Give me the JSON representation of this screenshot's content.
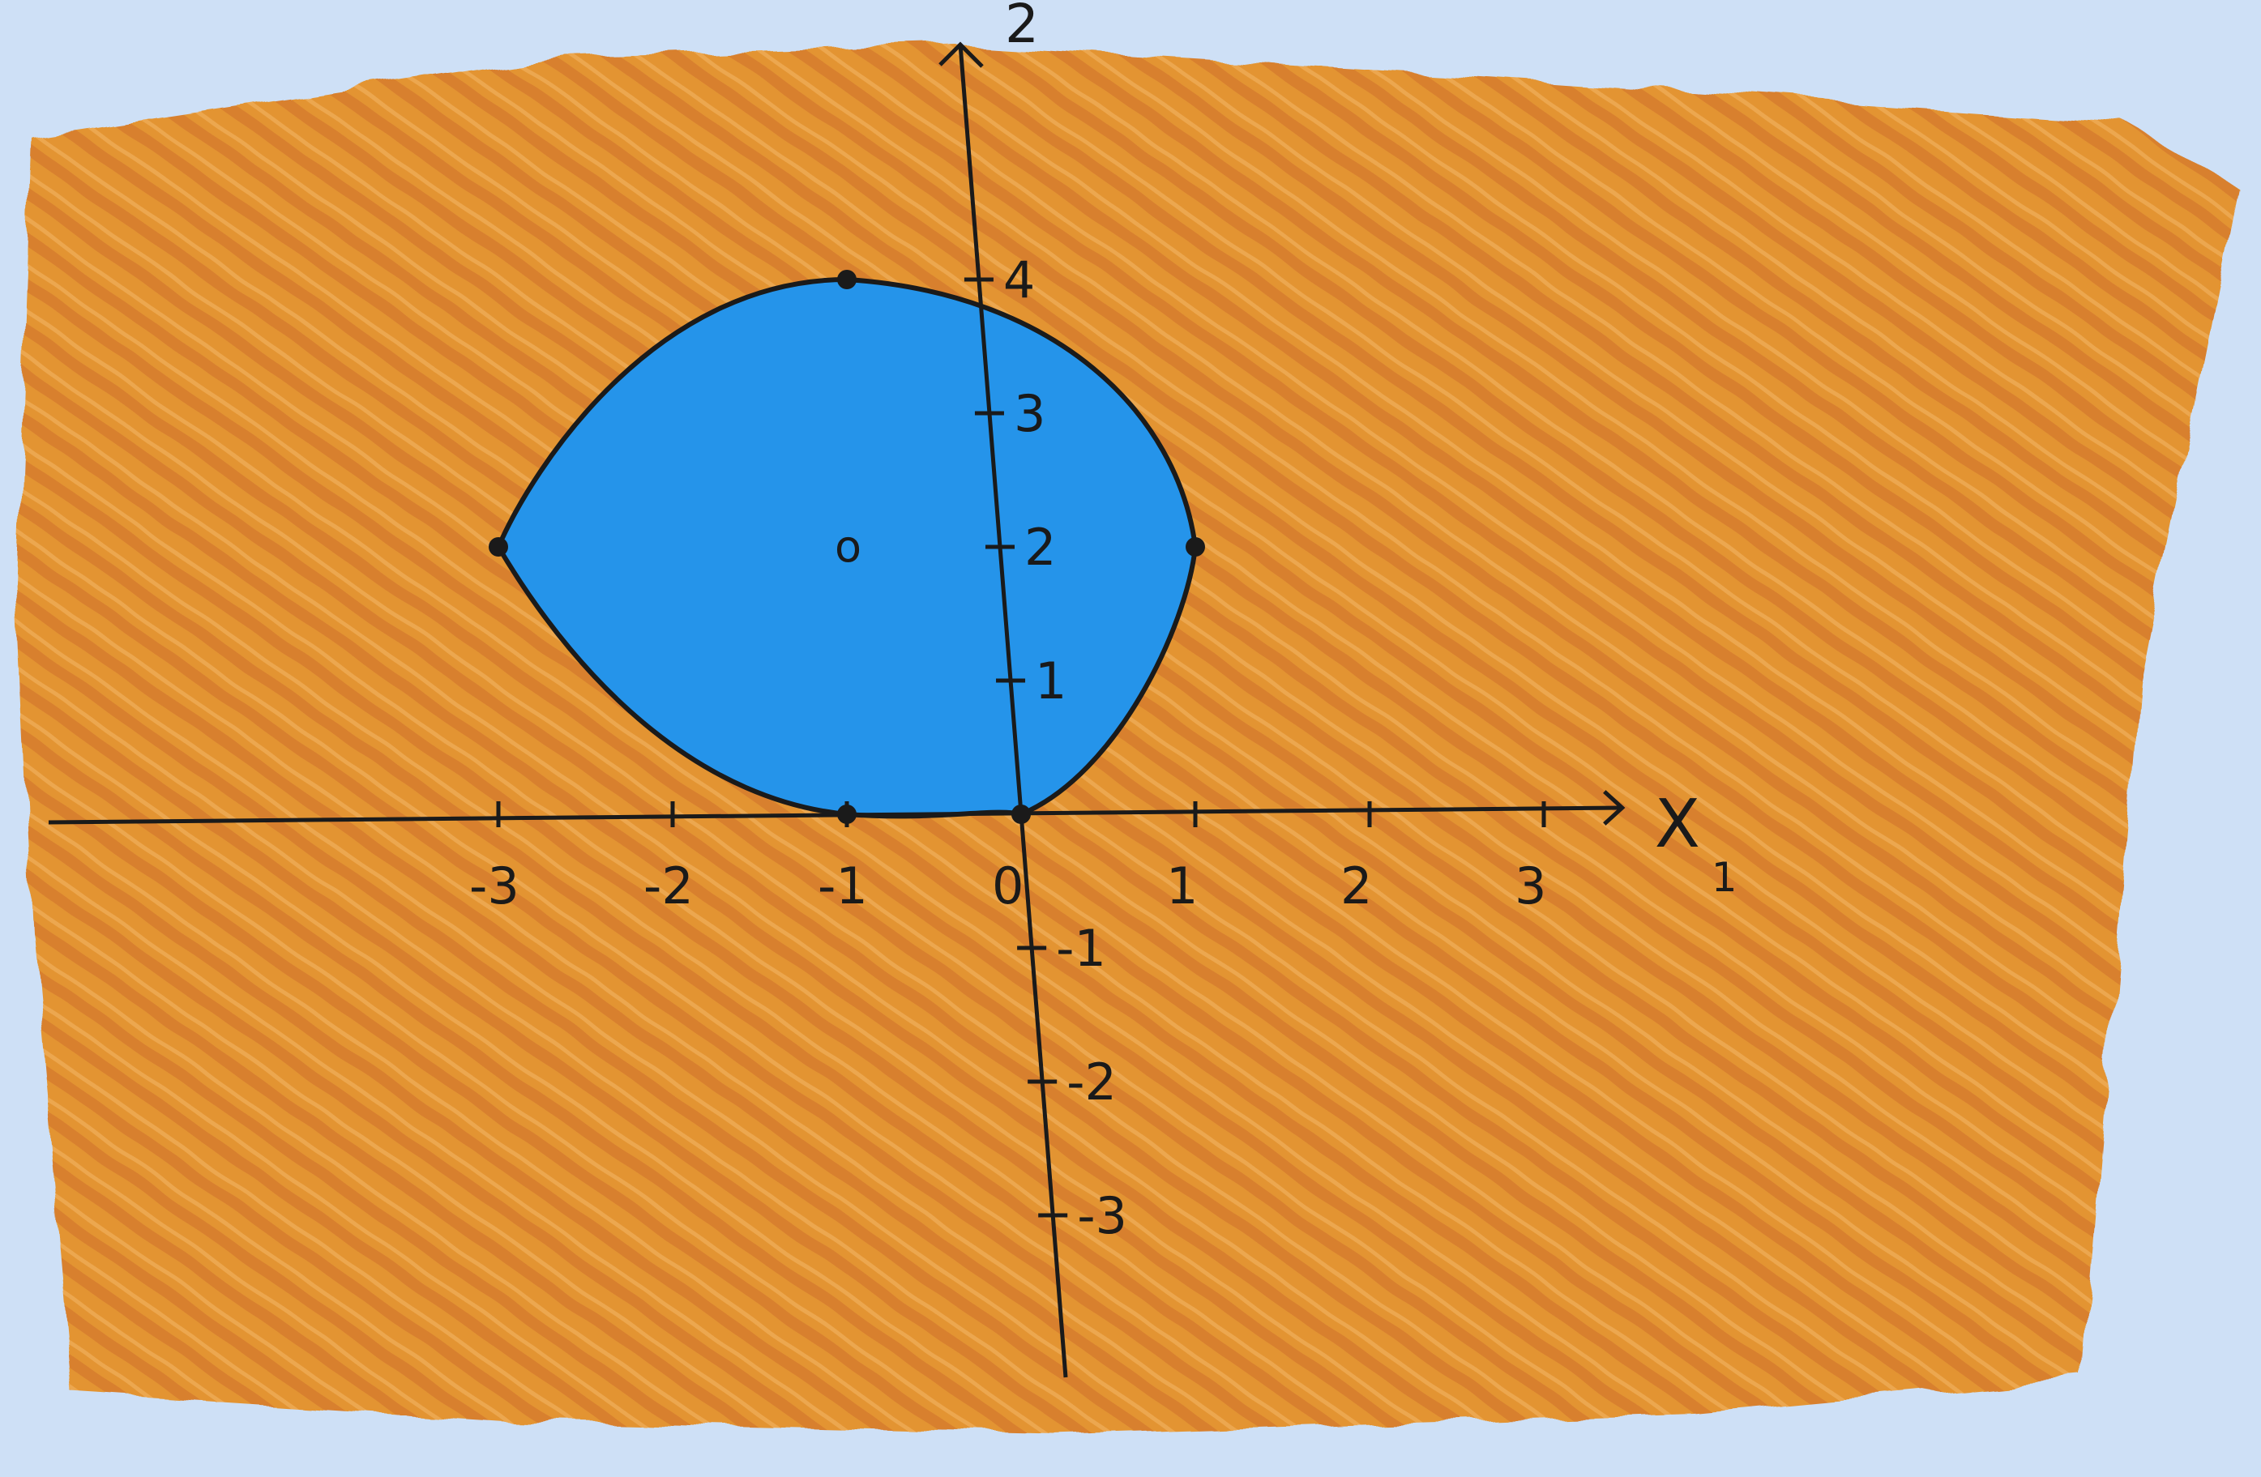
{
  "diagram": {
    "colors": {
      "background": "#b3d3f3",
      "paper": "#f2f6fc",
      "outer_region": "#e39433",
      "outer_region_dark": "#cf6f2b",
      "inner_region": "#2594ea",
      "ink": "#1a1a1a"
    },
    "axes": {
      "x_label": "X",
      "x_subscript": "1",
      "y_label": "2"
    },
    "x_ticks": [
      {
        "value": -3,
        "label": "-3"
      },
      {
        "value": -2,
        "label": "-2"
      },
      {
        "value": -1,
        "label": "-1"
      },
      {
        "value": 0,
        "label": "0"
      },
      {
        "value": 1,
        "label": "1"
      },
      {
        "value": 2,
        "label": "2"
      },
      {
        "value": 3,
        "label": "3"
      }
    ],
    "y_ticks": [
      {
        "value": 4,
        "label": "4"
      },
      {
        "value": 3,
        "label": "3"
      },
      {
        "value": 2,
        "label": "2"
      },
      {
        "value": 1,
        "label": "1"
      },
      {
        "value": -1,
        "label": "-1"
      },
      {
        "value": -2,
        "label": "-2"
      },
      {
        "value": -3,
        "label": "-3"
      }
    ],
    "center_marker": {
      "label": "o",
      "x": -1,
      "y": 2
    },
    "boundary_points": [
      {
        "x": -1,
        "y": 4
      },
      {
        "x": -3,
        "y": 2
      },
      {
        "x": 1,
        "y": 2
      },
      {
        "x": -1,
        "y": 0
      },
      {
        "x": 0,
        "y": 0
      }
    ],
    "shading": {
      "outer": "orange hatching",
      "inner": "blue fill"
    }
  }
}
